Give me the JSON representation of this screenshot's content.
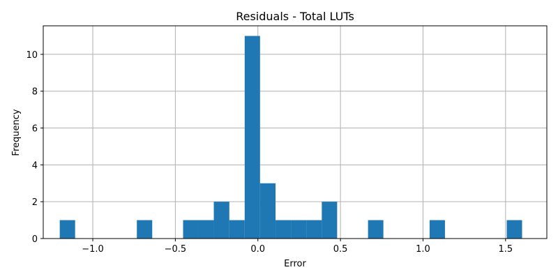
{
  "chart_data": {
    "type": "histogram",
    "title": "Residuals - Total LUTs",
    "xlabel": "Error",
    "ylabel": "Frequency",
    "xlim": [
      -1.3,
      1.75
    ],
    "ylim": [
      0,
      11.55
    ],
    "grid": true,
    "bar_color": "#1f77b4",
    "bin_width": 0.0933,
    "bins": [
      {
        "x0": -1.2,
        "x1": -1.107,
        "count": 1
      },
      {
        "x0": -0.733,
        "x1": -0.64,
        "count": 1
      },
      {
        "x0": -0.453,
        "x1": -0.36,
        "count": 1
      },
      {
        "x0": -0.36,
        "x1": -0.267,
        "count": 1
      },
      {
        "x0": -0.267,
        "x1": -0.173,
        "count": 2
      },
      {
        "x0": -0.173,
        "x1": -0.08,
        "count": 1
      },
      {
        "x0": -0.08,
        "x1": 0.013,
        "count": 11
      },
      {
        "x0": 0.013,
        "x1": 0.107,
        "count": 3
      },
      {
        "x0": 0.107,
        "x1": 0.2,
        "count": 1
      },
      {
        "x0": 0.2,
        "x1": 0.293,
        "count": 1
      },
      {
        "x0": 0.293,
        "x1": 0.387,
        "count": 1
      },
      {
        "x0": 0.387,
        "x1": 0.48,
        "count": 2
      },
      {
        "x0": 0.667,
        "x1": 0.76,
        "count": 1
      },
      {
        "x0": 1.04,
        "x1": 1.133,
        "count": 1
      },
      {
        "x0": 1.507,
        "x1": 1.6,
        "count": 1
      }
    ],
    "xticks": [
      -1.0,
      -0.5,
      0.0,
      0.5,
      1.0,
      1.5
    ],
    "xtick_labels": [
      "−1.0",
      "−0.5",
      "0.0",
      "0.5",
      "1.0",
      "1.5"
    ],
    "yticks": [
      0,
      2,
      4,
      6,
      8,
      10
    ],
    "ytick_labels": [
      "0",
      "2",
      "4",
      "6",
      "8",
      "10"
    ]
  }
}
